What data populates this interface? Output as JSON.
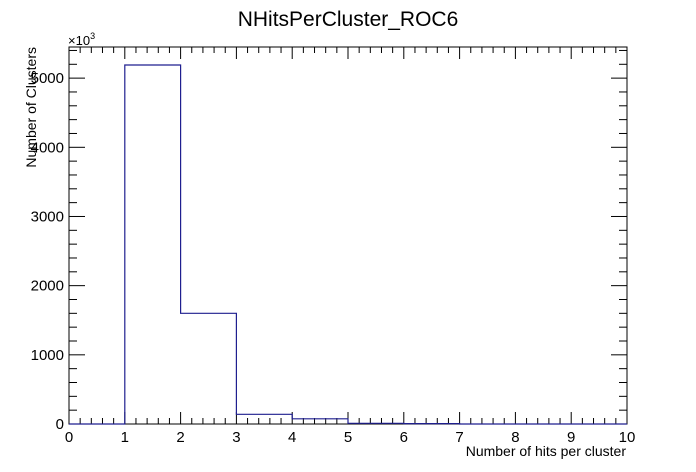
{
  "chart_data": {
    "type": "bar",
    "title": "NHitsPerCluster_ROC6",
    "xlabel": "Number of hits per cluster",
    "ylabel": "Number of Clusters",
    "y_multiplier_label": "×10",
    "y_multiplier_exponent": "3",
    "xlim": [
      0,
      10
    ],
    "ylim": [
      0,
      5450
    ],
    "x_ticks": [
      "0",
      "1",
      "2",
      "3",
      "4",
      "5",
      "6",
      "7",
      "8",
      "9",
      "10"
    ],
    "y_ticks": [
      "0",
      "1000",
      "2000",
      "3000",
      "4000",
      "5000"
    ],
    "grid": false,
    "line_color": "#1f1f8f",
    "bins": [
      {
        "x_low": 0,
        "x_high": 1,
        "value": 0
      },
      {
        "x_low": 1,
        "x_high": 2,
        "value": 5190
      },
      {
        "x_low": 2,
        "x_high": 3,
        "value": 1600
      },
      {
        "x_low": 3,
        "x_high": 4,
        "value": 140
      },
      {
        "x_low": 4,
        "x_high": 5,
        "value": 75
      },
      {
        "x_low": 5,
        "x_high": 6,
        "value": 10
      },
      {
        "x_low": 6,
        "x_high": 7,
        "value": 5
      },
      {
        "x_low": 7,
        "x_high": 8,
        "value": 0
      },
      {
        "x_low": 8,
        "x_high": 9,
        "value": 0
      },
      {
        "x_low": 9,
        "x_high": 10,
        "value": 0
      }
    ]
  }
}
